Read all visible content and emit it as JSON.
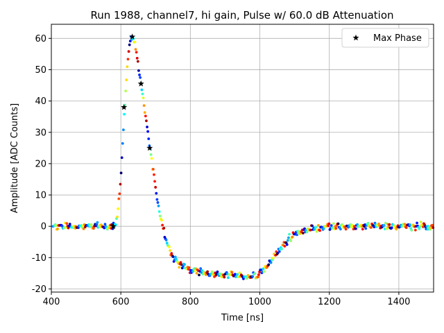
{
  "chart_data": {
    "type": "scatter",
    "title": "Run 1988, channel7, hi gain, Pulse w/ 60.0 dB Attenuation",
    "xlabel": "Time [ns]",
    "ylabel": "Amplitude [ADC Counts]",
    "xlim": [
      400,
      1500
    ],
    "ylim": [
      -21,
      64.5
    ],
    "xticks": [
      400,
      600,
      800,
      1000,
      1200,
      1400
    ],
    "yticks": [
      -20,
      -10,
      0,
      10,
      20,
      30,
      40,
      50,
      60
    ],
    "grid": true,
    "legend_position": "top-right",
    "colormap": "jet",
    "pulse_shape": [
      [
        400,
        0
      ],
      [
        580,
        0
      ],
      [
        590,
        3
      ],
      [
        600,
        15
      ],
      [
        610,
        36
      ],
      [
        620,
        54
      ],
      [
        630,
        60.5
      ],
      [
        640,
        59
      ],
      [
        650,
        52
      ],
      [
        660,
        44
      ],
      [
        670,
        36
      ],
      [
        680,
        28
      ],
      [
        690,
        20
      ],
      [
        700,
        12
      ],
      [
        710,
        5
      ],
      [
        720,
        0
      ],
      [
        730,
        -4
      ],
      [
        740,
        -7
      ],
      [
        750,
        -9.5
      ],
      [
        760,
        -11
      ],
      [
        780,
        -13
      ],
      [
        800,
        -14
      ],
      [
        850,
        -15
      ],
      [
        900,
        -15.5
      ],
      [
        950,
        -16
      ],
      [
        990,
        -15.5
      ],
      [
        1000,
        -15
      ],
      [
        1020,
        -13
      ],
      [
        1040,
        -10
      ],
      [
        1060,
        -7
      ],
      [
        1080,
        -4.5
      ],
      [
        1100,
        -2.5
      ],
      [
        1130,
        -1.2
      ],
      [
        1160,
        -0.6
      ],
      [
        1200,
        -0.2
      ],
      [
        1300,
        0
      ],
      [
        1500,
        0
      ]
    ],
    "series": [
      {
        "name": "Max Phase",
        "marker": "star",
        "color": "#000000",
        "x": [
          578,
          609,
          633,
          658,
          683
        ],
        "y": [
          0,
          38,
          60.5,
          45.5,
          25
        ]
      }
    ]
  }
}
